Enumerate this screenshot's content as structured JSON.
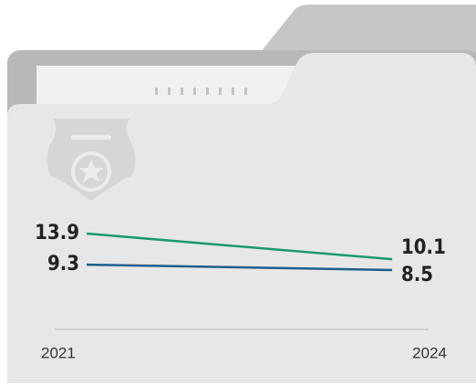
{
  "chart_data": {
    "type": "slope",
    "categories": [
      "2021",
      "2024"
    ],
    "series": [
      {
        "color": "#1a9a6c",
        "values": [
          13.9,
          10.1
        ]
      },
      {
        "color": "#1b5e8c",
        "values": [
          9.3,
          8.5
        ]
      }
    ]
  }
}
